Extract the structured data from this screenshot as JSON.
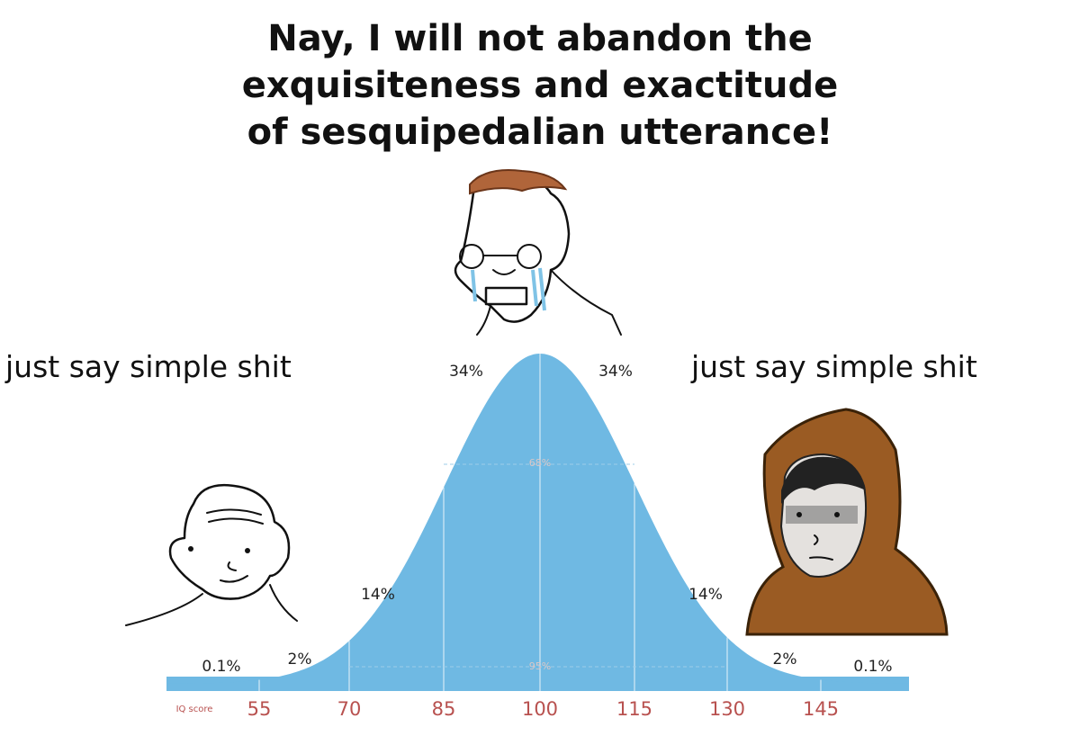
{
  "title": {
    "lines": [
      "Nay, I will not abandon the",
      "exquisiteness and exactitude",
      "of sesquipedalian utterance!"
    ]
  },
  "captions": {
    "left": "just say simple shit",
    "right": "just say simple shit"
  },
  "curve": {
    "percent_labels": [
      "0.1%",
      "2%",
      "14%",
      "34%",
      "34%",
      "14%",
      "2%",
      "0.1%"
    ],
    "inner_labels": [
      "68%",
      "95%"
    ],
    "axis_label": "IQ score",
    "scores": [
      "55",
      "70",
      "85",
      "100",
      "115",
      "130",
      "145"
    ]
  }
}
